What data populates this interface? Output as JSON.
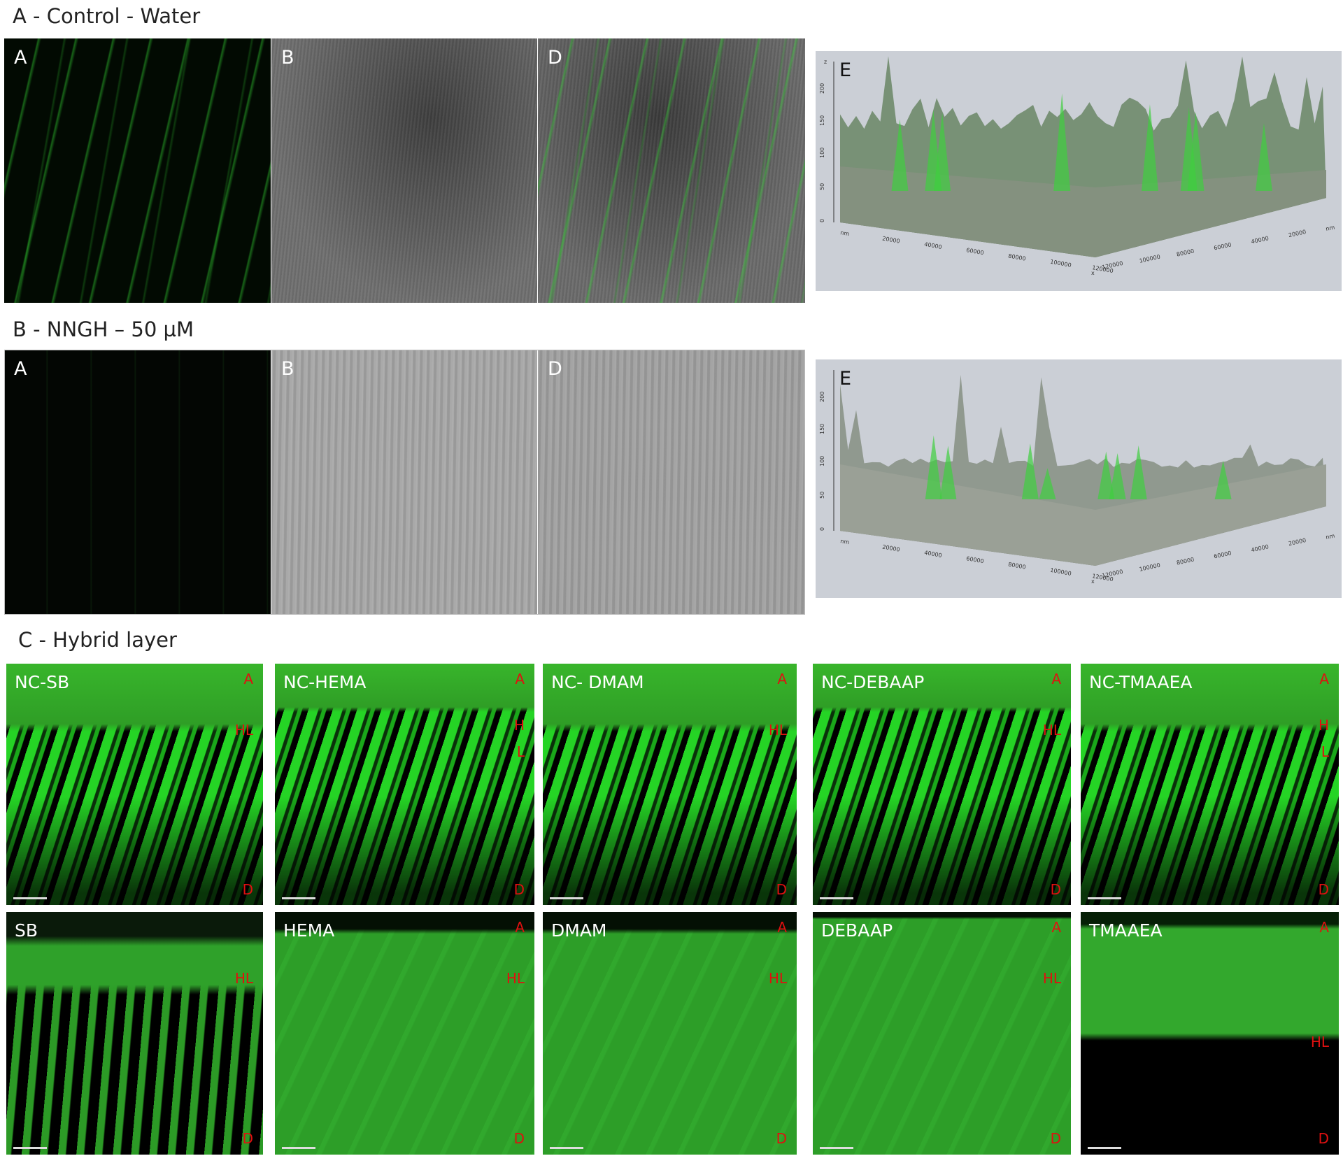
{
  "sections": [
    {
      "title": "A - Control - Water",
      "panels": [
        {
          "label": "A"
        },
        {
          "label": "B"
        },
        {
          "label": "D"
        }
      ],
      "plot": {
        "label": "E",
        "z_axis": "z",
        "z_ticks": [
          "0",
          "50",
          "100",
          "150",
          "200"
        ],
        "x_axis": "x",
        "x_ticks": [
          "nm",
          "20000",
          "40000",
          "60000",
          "80000",
          "100000",
          "120000"
        ],
        "y_ticks": [
          "120000",
          "100000",
          "80000",
          "60000",
          "40000",
          "20000",
          "nm"
        ]
      }
    },
    {
      "title": "B - NNGH – 50 µM",
      "panels": [
        {
          "label": "A"
        },
        {
          "label": "B"
        },
        {
          "label": "D"
        }
      ],
      "plot": {
        "label": "E",
        "z_ticks": [
          "0",
          "50",
          "100",
          "150",
          "200"
        ],
        "x_axis": "x",
        "x_ticks": [
          "nm",
          "20000",
          "40000",
          "60000",
          "80000",
          "100000",
          "120000"
        ],
        "y_ticks": [
          "120000",
          "100000",
          "80000",
          "60000",
          "40000",
          "20000",
          "nm"
        ]
      }
    }
  ],
  "hybrid": {
    "title": "C - Hybrid layer",
    "rows": [
      [
        {
          "label": "NC-SB",
          "marks": [
            "A",
            "HL",
            "D"
          ]
        },
        {
          "label": "NC-HEMA",
          "marks": [
            "A",
            "H",
            "L",
            "D"
          ]
        },
        {
          "label": "NC- DMAM",
          "marks": [
            "A",
            "HL",
            "D"
          ]
        },
        {
          "label": "NC-DEBAAP",
          "marks": [
            "A",
            "HL",
            "D"
          ]
        },
        {
          "label": "NC-TMAAEA",
          "marks": [
            "A",
            "H",
            "L",
            "D"
          ]
        }
      ],
      [
        {
          "label": "SB",
          "marks": [
            "HL",
            "D"
          ]
        },
        {
          "label": "HEMA",
          "marks": [
            "A",
            "HL",
            "D"
          ]
        },
        {
          "label": "DMAM",
          "marks": [
            "A",
            "HL",
            "D"
          ]
        },
        {
          "label": "DEBAAP",
          "marks": [
            "A",
            "HL",
            "D"
          ]
        },
        {
          "label": "TMAAEA",
          "marks": [
            "A",
            "HL",
            "D"
          ]
        }
      ]
    ]
  }
}
